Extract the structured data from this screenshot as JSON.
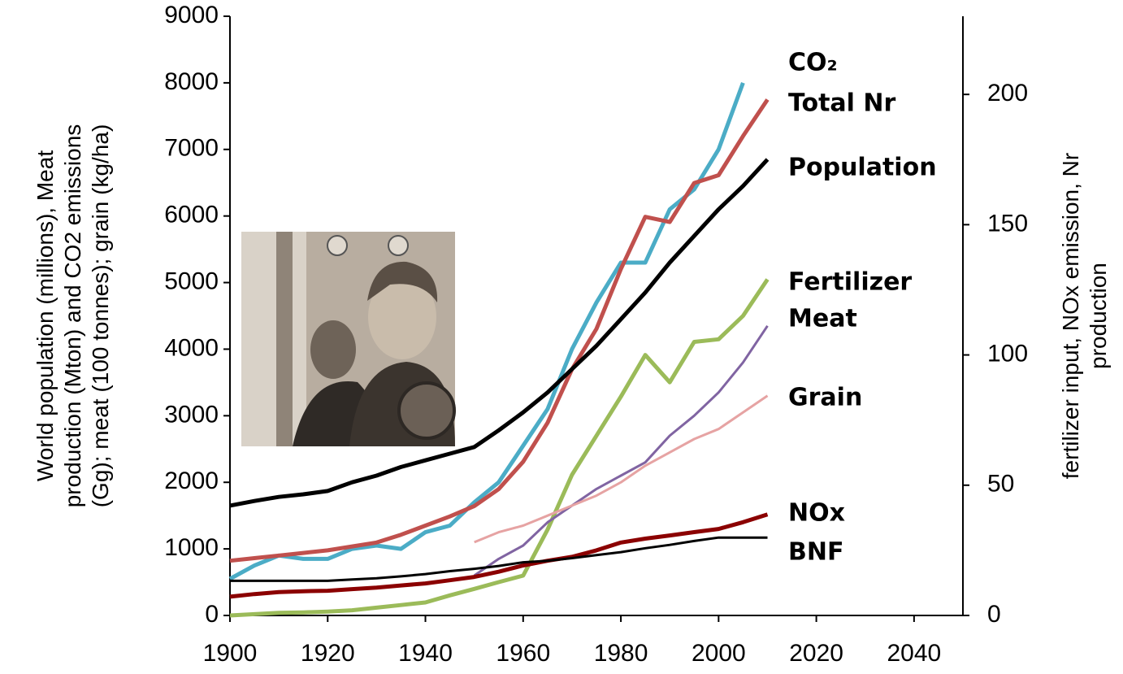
{
  "chart_data": {
    "type": "line",
    "y_label": [
      "World population (millions), Meat",
      "production (Mton) and CO2 emissions",
      "(Gg); meat (100 tonnes); grain (kg/ha)"
    ],
    "y2_label": [
      "fertilizer input, NOx emission, Nr",
      "production"
    ],
    "x": [
      1900,
      1905,
      1910,
      1915,
      1920,
      1925,
      1930,
      1935,
      1940,
      1945,
      1950,
      1955,
      1960,
      1965,
      1970,
      1975,
      1980,
      1985,
      1990,
      1995,
      2000,
      2005,
      2010
    ],
    "xlim": [
      1900,
      2050
    ],
    "xticks": [
      1900,
      1920,
      1940,
      1960,
      1980,
      2000,
      2020,
      2040
    ],
    "ylim": [
      0,
      9000
    ],
    "yticks": [
      0,
      1000,
      2000,
      3000,
      4000,
      5000,
      6000,
      7000,
      8000,
      9000
    ],
    "y2lim": [
      0,
      230
    ],
    "y2ticks": [
      0,
      50,
      100,
      150,
      200
    ],
    "grid": false,
    "series": [
      {
        "name": "CO₂",
        "color": "#4bacc6",
        "values": [
          550,
          750,
          900,
          850,
          850,
          1000,
          1050,
          1000,
          1250,
          1350,
          1700,
          2000,
          2550,
          3100,
          4000,
          4700,
          5300,
          5300,
          6100,
          6400,
          7000,
          8000,
          null
        ]
      },
      {
        "name": "Total Nr",
        "color": "#c0504d",
        "axis": "y2",
        "values": [
          21,
          22,
          23,
          24,
          25,
          26.5,
          28,
          31,
          34.5,
          38,
          42,
          48.5,
          59,
          74,
          94.5,
          110,
          133,
          153,
          151,
          166,
          169,
          184,
          198
        ]
      },
      {
        "name": "Population",
        "color": "#000000",
        "values": [
          1650,
          1720,
          1780,
          1820,
          1870,
          2000,
          2100,
          2230,
          2330,
          2430,
          2530,
          2780,
          3050,
          3350,
          3700,
          4050,
          4450,
          4850,
          5300,
          5700,
          6100,
          6450,
          6850
        ]
      },
      {
        "name": "Fertilizer",
        "color": "#9bbb59",
        "axis": "y2",
        "values": [
          0,
          0.5,
          1,
          1.2,
          1.5,
          2,
          3,
          4,
          5,
          7.7,
          10.2,
          12.8,
          15.3,
          33,
          54,
          69,
          84,
          100,
          89.5,
          105,
          106,
          115,
          129
        ]
      },
      {
        "name": "Meat",
        "color": "#8064a2",
        "values": [
          null,
          null,
          null,
          null,
          null,
          null,
          null,
          null,
          null,
          null,
          600,
          850,
          1050,
          1400,
          1650,
          1900,
          2100,
          2300,
          2700,
          3000,
          3350,
          3800,
          4350
        ]
      },
      {
        "name": "Grain",
        "color": "#e6a3a3",
        "values": [
          null,
          null,
          null,
          null,
          null,
          null,
          null,
          null,
          null,
          null,
          1100,
          1250,
          1350,
          1500,
          1650,
          1800,
          2000,
          2250,
          2450,
          2650,
          2800,
          3050,
          3300
        ]
      },
      {
        "name": "NOx",
        "color": "#8b0000",
        "axis": "y2",
        "values": [
          7.2,
          8.2,
          9,
          9.3,
          9.5,
          10.1,
          10.7,
          11.5,
          12.3,
          13.5,
          14.8,
          16.8,
          19.2,
          21,
          22.5,
          25,
          28,
          29.5,
          30.7,
          32,
          33.2,
          35.8,
          38.8
        ]
      },
      {
        "name": "BNF",
        "color": "#1f3a6e",
        "axis": "y2",
        "values": [
          13.3,
          13.3,
          13.3,
          13.3,
          13.3,
          13.8,
          14.3,
          15,
          15.9,
          17,
          17.9,
          19,
          20.4,
          21,
          22,
          23.2,
          24.3,
          25.8,
          27.1,
          28.6,
          29.9,
          29.9,
          29.9
        ]
      }
    ]
  }
}
